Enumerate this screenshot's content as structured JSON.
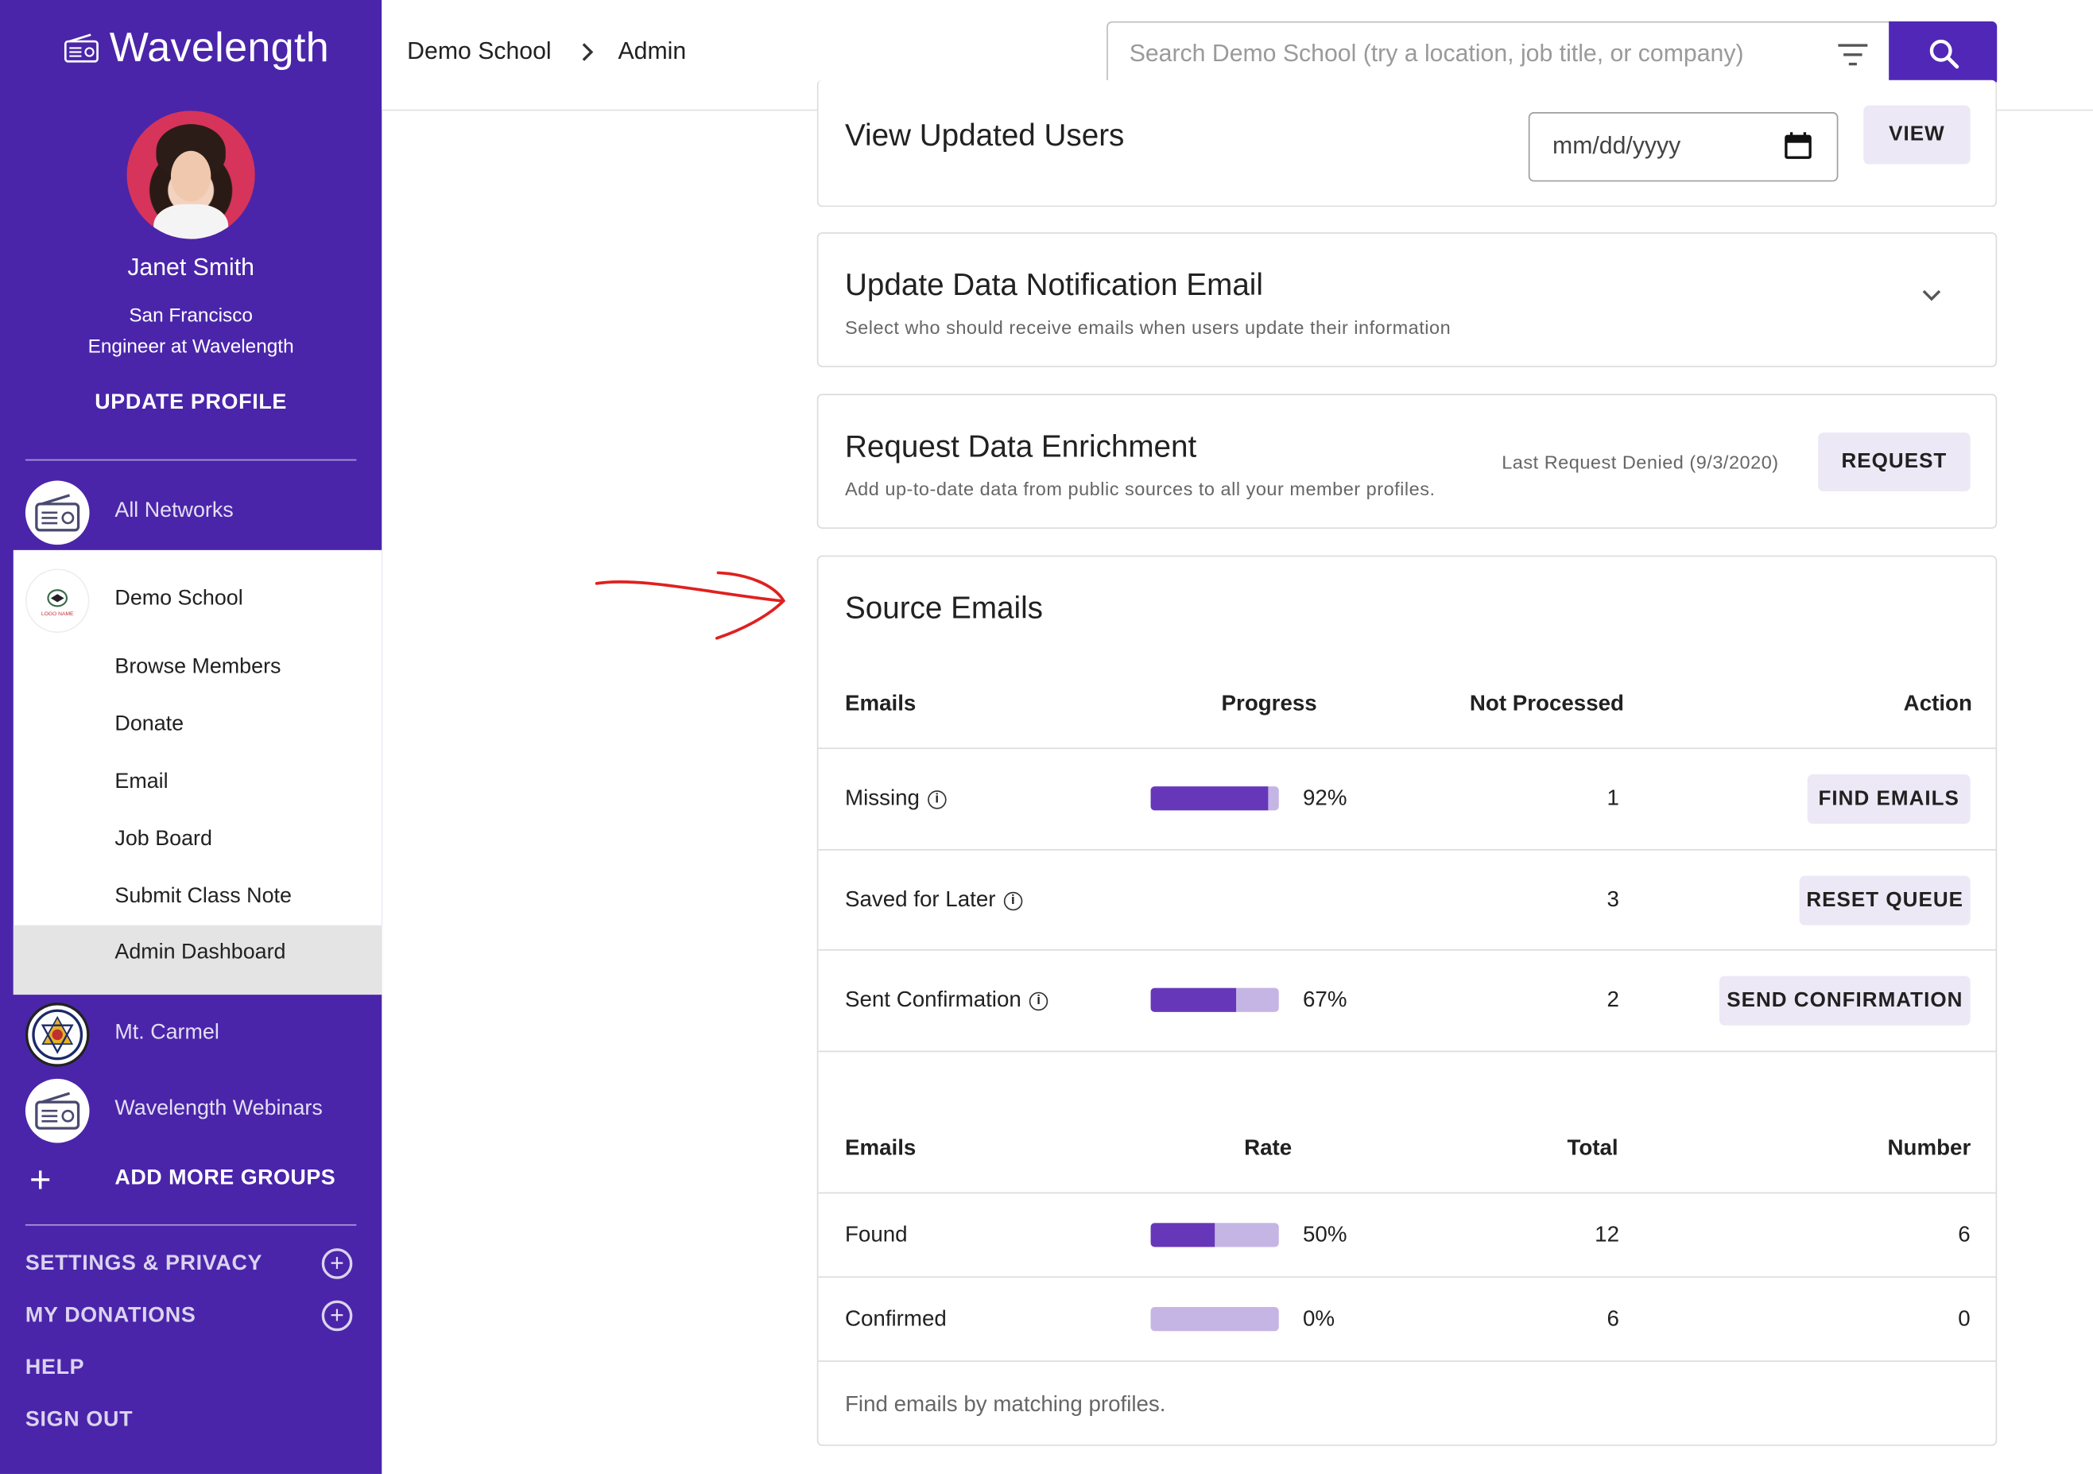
{
  "app": {
    "brand": "Wavelength"
  },
  "profile": {
    "name": "Janet Smith",
    "location": "San Francisco",
    "role": "Engineer at Wavelength",
    "update_label": "UPDATE PROFILE"
  },
  "sidebar": {
    "networks": [
      {
        "label": "All Networks",
        "icon": "radio-icon"
      },
      {
        "label": "Demo School",
        "icon": "school-logo-icon"
      },
      {
        "label": "Mt. Carmel",
        "icon": "mt-carmel-seal-icon"
      },
      {
        "label": "Wavelength Webinars",
        "icon": "radio-icon"
      }
    ],
    "demo_school_items": [
      "Browse Members",
      "Donate",
      "Email",
      "Job Board",
      "Submit Class Note",
      "Admin Dashboard"
    ],
    "logo_text": "LOGO NAME",
    "add_groups": "ADD MORE GROUPS",
    "footer": [
      "SETTINGS & PRIVACY",
      "MY DONATIONS",
      "HELP",
      "SIGN OUT"
    ]
  },
  "header": {
    "breadcrumb": [
      "Demo School",
      "Admin"
    ],
    "search_placeholder": "Search Demo School (try a location, job title, or company)"
  },
  "view_updated": {
    "title": "View Updated Users",
    "date_placeholder": "mm/dd/yyyy",
    "button": "VIEW"
  },
  "notification": {
    "title": "Update Data Notification Email",
    "subtitle": "Select who should receive emails when users update their information"
  },
  "enrichment": {
    "title": "Request Data Enrichment",
    "subtitle": "Add up-to-date data from public sources to all your member profiles.",
    "status": "Last Request Denied (9/3/2020)",
    "button": "REQUEST"
  },
  "source_emails": {
    "title": "Source Emails",
    "table1": {
      "headers": [
        "Emails",
        "Progress",
        "Not Processed",
        "Action"
      ],
      "rows": [
        {
          "label": "Missing",
          "progress": 0.92,
          "pct": "92%",
          "not_processed": "1",
          "action": "FIND EMAILS"
        },
        {
          "label": "Saved for Later",
          "progress": null,
          "pct": "",
          "not_processed": "3",
          "action": "RESET QUEUE"
        },
        {
          "label": "Sent Confirmation",
          "progress": 0.67,
          "pct": "67%",
          "not_processed": "2",
          "action": "SEND CONFIRMATION"
        }
      ]
    },
    "table2": {
      "headers": [
        "Emails",
        "Rate",
        "Total",
        "Number"
      ],
      "rows": [
        {
          "label": "Found",
          "rate": 0.5,
          "pct": "50%",
          "total": "12",
          "number": "6"
        },
        {
          "label": "Confirmed",
          "rate": 0,
          "pct": "0%",
          "total": "6",
          "number": "0"
        }
      ]
    },
    "footer_note": "Find emails by matching profiles."
  },
  "colors": {
    "sidebar": "#4a25aa",
    "accent": "#5027b6",
    "bar_fill": "#6637b9",
    "bar_track": "#c5b5e4",
    "button_bg": "#ece8f5",
    "annotation": "#e02020"
  }
}
